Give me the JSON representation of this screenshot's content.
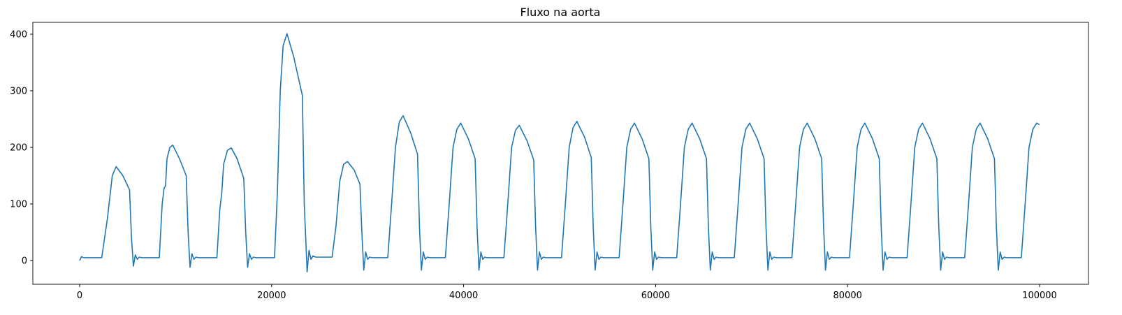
{
  "chart_data": {
    "type": "line",
    "title": "Fluxo na aorta",
    "color": "#1f77b4",
    "grid": false,
    "xlim": [
      -4876,
      105095
    ],
    "ylim": [
      -42,
      421
    ],
    "xticks": [
      0,
      20000,
      40000,
      60000,
      80000,
      100000
    ],
    "yticks": [
      0,
      100,
      200,
      300,
      400
    ],
    "x": [
      0,
      200,
      400,
      2300,
      2900,
      3400,
      3800,
      4500,
      5200,
      5400,
      5600,
      5800,
      6000,
      6200,
      6500,
      8300,
      8600,
      8800,
      8950,
      9100,
      9400,
      9700,
      10400,
      11100,
      11300,
      11500,
      11700,
      11900,
      12100,
      12400,
      14300,
      14600,
      14800,
      15000,
      15400,
      15800,
      16400,
      17100,
      17300,
      17500,
      17700,
      17900,
      18100,
      18400,
      20300,
      20600,
      20900,
      21200,
      21600,
      22300,
      23200,
      23400,
      23700,
      23900,
      24100,
      24300,
      24600,
      26300,
      26700,
      27100,
      27500,
      27900,
      28600,
      29200,
      29400,
      29600,
      29800,
      30000,
      30200,
      30500,
      32100,
      32500,
      32900,
      33300,
      33700,
      34500,
      35200,
      35400,
      35600,
      35800,
      36000,
      36200,
      36500,
      38100,
      38500,
      38900,
      39300,
      39700,
      40500,
      41200,
      41400,
      41600,
      41800,
      42000,
      42200,
      42500,
      44200,
      44600,
      45000,
      45400,
      45800,
      46600,
      47300,
      47500,
      47700,
      47900,
      48100,
      48300,
      48600,
      50200,
      50600,
      51000,
      51400,
      51800,
      52600,
      53300,
      53500,
      53700,
      53900,
      54100,
      54300,
      54600,
      56200,
      56600,
      57000,
      57400,
      57800,
      58600,
      59300,
      59500,
      59700,
      59900,
      60100,
      60300,
      60600,
      62200,
      62600,
      63000,
      63400,
      63800,
      64600,
      65300,
      65500,
      65700,
      65900,
      66100,
      66300,
      66600,
      68200,
      68600,
      69000,
      69400,
      69800,
      70600,
      71300,
      71500,
      71700,
      71900,
      72100,
      72300,
      72600,
      74200,
      74600,
      75000,
      75400,
      75800,
      76600,
      77300,
      77500,
      77700,
      77900,
      78100,
      78300,
      78600,
      80200,
      80600,
      81000,
      81400,
      81800,
      82600,
      83300,
      83500,
      83700,
      83900,
      84100,
      84300,
      84600,
      86200,
      86600,
      87000,
      87400,
      87800,
      88600,
      89300,
      89500,
      89700,
      89900,
      90100,
      90300,
      90600,
      92200,
      92600,
      93000,
      93400,
      93800,
      94600,
      95300,
      95500,
      95700,
      95900,
      96100,
      96300,
      96600,
      98100,
      98500,
      98900,
      99300,
      99700,
      100000
    ],
    "values": [
      0,
      7,
      5,
      5,
      75,
      150,
      166,
      150,
      125,
      40,
      -10,
      10,
      2,
      6,
      5,
      5,
      100,
      128,
      132,
      180,
      200,
      204,
      180,
      150,
      50,
      -12,
      12,
      2,
      6,
      5,
      5,
      90,
      118,
      170,
      195,
      199,
      180,
      145,
      50,
      -12,
      12,
      2,
      6,
      5,
      5,
      120,
      300,
      380,
      401,
      360,
      292,
      100,
      -20,
      18,
      2,
      8,
      6,
      6,
      60,
      140,
      170,
      175,
      160,
      135,
      50,
      -17,
      15,
      2,
      6,
      5,
      5,
      100,
      200,
      245,
      256,
      225,
      188,
      60,
      -17,
      15,
      2,
      6,
      5,
      5,
      100,
      200,
      232,
      243,
      215,
      180,
      60,
      -17,
      15,
      2,
      6,
      5,
      5,
      100,
      200,
      230,
      239,
      212,
      178,
      60,
      -17,
      15,
      2,
      6,
      5,
      5,
      100,
      200,
      235,
      246,
      218,
      182,
      60,
      -17,
      15,
      2,
      6,
      5,
      5,
      100,
      200,
      232,
      243,
      215,
      180,
      60,
      -17,
      15,
      2,
      6,
      5,
      5,
      100,
      200,
      232,
      243,
      215,
      180,
      60,
      -17,
      15,
      2,
      6,
      5,
      5,
      100,
      200,
      232,
      243,
      215,
      180,
      60,
      -17,
      15,
      2,
      6,
      5,
      5,
      100,
      200,
      232,
      243,
      215,
      180,
      60,
      -17,
      15,
      2,
      6,
      5,
      5,
      100,
      200,
      232,
      243,
      215,
      180,
      60,
      -17,
      15,
      2,
      6,
      5,
      5,
      100,
      200,
      232,
      243,
      215,
      180,
      60,
      -17,
      15,
      2,
      6,
      5,
      5,
      100,
      200,
      232,
      243,
      215,
      180,
      60,
      -17,
      15,
      2,
      6,
      5,
      5,
      100,
      200,
      232,
      243,
      240
    ]
  }
}
